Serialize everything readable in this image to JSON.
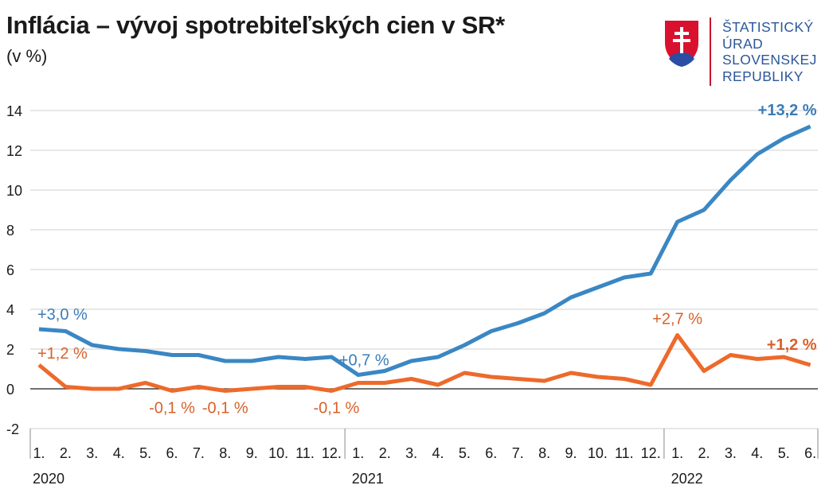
{
  "header": {
    "title": "Inflácia – vývoj spotrebiteľských cien v SR*",
    "subtitle": "(v %)"
  },
  "logo": {
    "lines": [
      "ŠTATISTICKÝ",
      "ÚRAD",
      "SLOVENSKEJ",
      "REPUBLIKY"
    ],
    "icon": "slovak-coat-of-arms-icon"
  },
  "colors": {
    "blue": "#3a87c3",
    "orange": "#ed6a2b",
    "blue_label": "#3a7cb8",
    "orange_label": "#d9602a",
    "grid": "#cfcfcf",
    "axis": "#1a1a1a"
  },
  "chart_data": {
    "type": "line",
    "title": "Inflácia – vývoj spotrebiteľských cien v SR*",
    "ylabel": "(v %)",
    "ylim": [
      -2,
      14
    ],
    "yticks": [
      -2,
      0,
      2,
      4,
      6,
      8,
      10,
      12,
      14
    ],
    "grid": true,
    "categories": [
      "1.",
      "2.",
      "3.",
      "4.",
      "5.",
      "6.",
      "7.",
      "8.",
      "9.",
      "10.",
      "11.",
      "12.",
      "1.",
      "2.",
      "3.",
      "4.",
      "5.",
      "6.",
      "7.",
      "8.",
      "9.",
      "10.",
      "11.",
      "12.",
      "1.",
      "2.",
      "3.",
      "4.",
      "5.",
      "6."
    ],
    "years": [
      {
        "label": "2020",
        "start_index": 0
      },
      {
        "label": "2021",
        "start_index": 12
      },
      {
        "label": "2022",
        "start_index": 24
      }
    ],
    "series": [
      {
        "name": "blue",
        "color": "#3a87c3",
        "values": [
          3.0,
          2.9,
          2.2,
          2.0,
          1.9,
          1.7,
          1.7,
          1.4,
          1.4,
          1.6,
          1.5,
          1.6,
          0.7,
          0.9,
          1.4,
          1.6,
          2.2,
          2.9,
          3.3,
          3.8,
          4.6,
          5.1,
          5.6,
          5.8,
          8.4,
          9.0,
          10.5,
          11.8,
          12.6,
          13.2
        ]
      },
      {
        "name": "orange",
        "color": "#ed6a2b",
        "values": [
          1.2,
          0.1,
          0.0,
          0.0,
          0.3,
          -0.1,
          0.1,
          -0.1,
          0.0,
          0.1,
          0.1,
          -0.1,
          0.3,
          0.3,
          0.5,
          0.2,
          0.8,
          0.6,
          0.5,
          0.4,
          0.8,
          0.6,
          0.5,
          0.2,
          2.7,
          0.9,
          1.7,
          1.5,
          1.6,
          1.2
        ]
      }
    ],
    "annotations": [
      {
        "text": "+3,0 %",
        "series": "blue",
        "index": 0,
        "bold": false
      },
      {
        "text": "+0,7 %",
        "series": "blue",
        "index": 12,
        "bold": false
      },
      {
        "text": "+13,2 %",
        "series": "blue",
        "index": 29,
        "bold": true
      },
      {
        "text": "+1,2 %",
        "series": "orange",
        "index": 0,
        "bold": false
      },
      {
        "text": "-0,1 %",
        "series": "orange",
        "index": 5,
        "bold": false
      },
      {
        "text": "-0,1 %",
        "series": "orange",
        "index": 7,
        "bold": false
      },
      {
        "text": "-0,1 %",
        "series": "orange",
        "index": 11,
        "bold": false
      },
      {
        "text": "+2,7 %",
        "series": "orange",
        "index": 24,
        "bold": false
      },
      {
        "text": "+1,2 %",
        "series": "orange",
        "index": 29,
        "bold": true
      }
    ]
  }
}
